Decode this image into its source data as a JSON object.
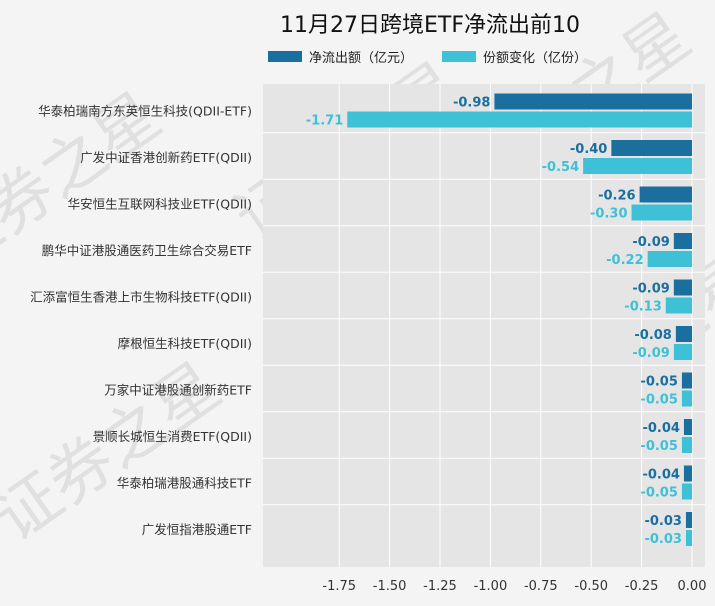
{
  "chart_data": {
    "type": "bar",
    "orientation": "horizontal",
    "title": "11月27日跨境ETF净流出前10",
    "categories": [
      "华泰柏瑞南方东英恒生科技(QDII-ETF)",
      "广发中证香港创新药ETF(QDII)",
      "华安恒生互联网科技业ETF(QDII)",
      "鹏华中证港股通医药卫生综合交易ETF",
      "汇添富恒生香港上市生物科技ETF(QDII)",
      "摩根恒生科技ETF(QDII)",
      "万家中证港股通创新药ETF",
      "景顺长城恒生消费ETF(QDII)",
      "华泰柏瑞港股通科技ETF",
      "广发恒指港股通ETF"
    ],
    "series": [
      {
        "name": "净流出额（亿元）",
        "color": "#1a6f9f",
        "values": [
          -0.98,
          -0.4,
          -0.26,
          -0.09,
          -0.09,
          -0.08,
          -0.05,
          -0.04,
          -0.04,
          -0.03
        ]
      },
      {
        "name": "份额变化（亿份）",
        "color": "#3ec1d6",
        "values": [
          -1.71,
          -0.54,
          -0.3,
          -0.22,
          -0.13,
          -0.09,
          -0.05,
          -0.05,
          -0.05,
          -0.03
        ]
      }
    ],
    "data_labels": [
      [
        "-0.98",
        "-0.40",
        "-0.26",
        "-0.09",
        "-0.09",
        "-0.08",
        "-0.05",
        "-0.04",
        "-0.04",
        "-0.03"
      ],
      [
        "-1.71",
        "-0.54",
        "-0.30",
        "-0.22",
        "-0.13",
        "-0.09",
        "-0.05",
        "-0.05",
        "-0.05",
        "-0.03"
      ]
    ],
    "xticks": [
      "-1.75",
      "-1.50",
      "-1.25",
      "-1.00",
      "-0.75",
      "-0.50",
      "-0.25",
      "0.00"
    ],
    "xlim": [
      -1.9,
      0
    ],
    "grid": true,
    "legend": "top",
    "background": "#e5e5e5"
  },
  "watermark": "证券之星"
}
